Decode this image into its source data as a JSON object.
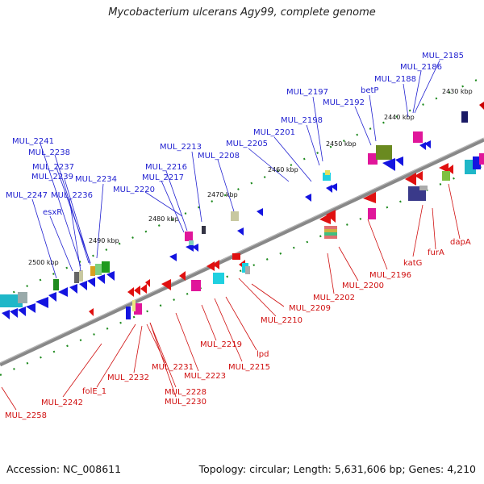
{
  "title": "Mycobacterium ulcerans Agy99, complete genome",
  "footer": {
    "accession": "Accession: NC_008611",
    "summary": "Topology: circular; Length: 5,631,606 bp; Genes: 4,210"
  },
  "ticks": [
    "2430 kbp",
    "2440 kbp",
    "2450 kbp",
    "2460 kbp",
    "2470 kbp",
    "2480 kbp",
    "2490 kbp",
    "2500 kbp"
  ],
  "colors": {
    "forward_label": "#1f1fd0",
    "reverse_label": "#d01010",
    "backbone": "#777777",
    "tick_green": "#1e8a1e"
  },
  "top_labels": [
    "MUL_2185",
    "MUL_2186",
    "MUL_2188",
    "betP",
    "MUL_2192",
    "MUL_2197",
    "MUL_2198",
    "MUL_2201",
    "MUL_2205",
    "MUL_2208",
    "MUL_2213",
    "MUL_2216",
    "MUL_2217",
    "MUL_2220",
    "MUL_2241",
    "MUL_2238",
    "MUL_2237",
    "MUL_2239",
    "MUL_2234",
    "MUL_2247",
    "MUL_2236",
    "esxR"
  ],
  "bottom_labels": [
    "dapA",
    "furA",
    "katG",
    "MUL_2196",
    "MUL_2200",
    "MUL_2202",
    "MUL_2209",
    "MUL_2210",
    "lpd",
    "MUL_2215",
    "MUL_2219",
    "MUL_2223",
    "MUL_2228",
    "MUL_2230",
    "MUL_2231",
    "MUL_2232",
    "folE_1",
    "MUL_2242",
    "MUL_2258"
  ]
}
